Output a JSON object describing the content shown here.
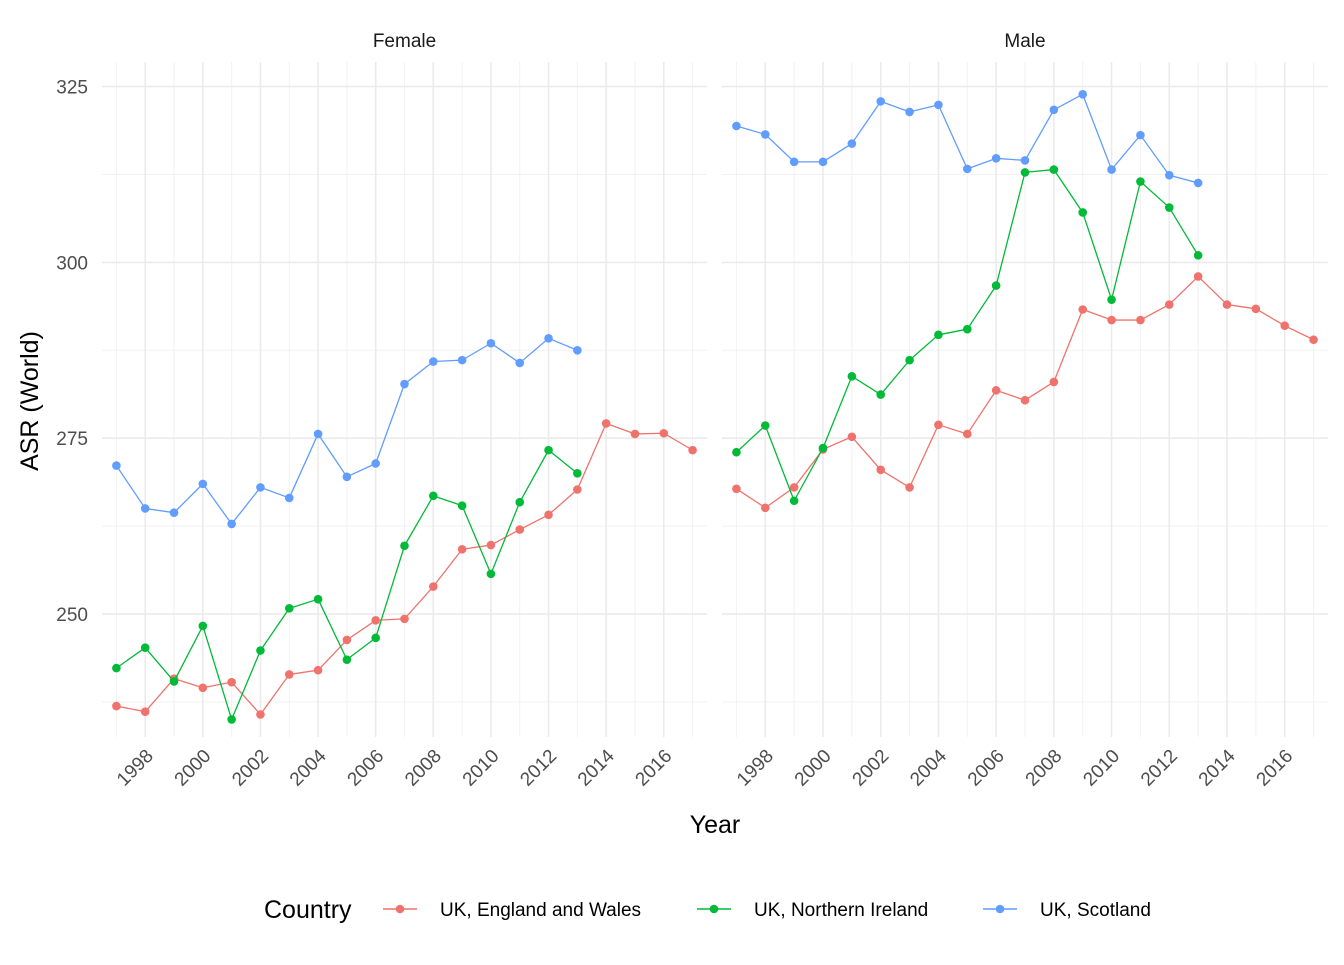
{
  "chart_data": {
    "type": "line",
    "x_label": "Year",
    "y_label": "ASR (World)",
    "facet_order": [
      "Female",
      "Male"
    ],
    "x_range": [
      1996.5,
      2017.5
    ],
    "y_range": [
      232.5,
      328.5
    ],
    "x_ticks": [
      1998,
      2000,
      2002,
      2004,
      2006,
      2008,
      2010,
      2012,
      2014,
      2016
    ],
    "y_ticks": [
      250,
      275,
      300,
      325
    ],
    "grid": true,
    "legend": {
      "title": "Country",
      "position": "bottom",
      "entries": [
        "UK, England and Wales",
        "UK, Northern Ireland",
        "UK, Scotland"
      ]
    },
    "colors": {
      "UK, England and Wales": "#f0726c",
      "UK, Northern Ireland": "#00ba38",
      "UK, Scotland": "#619cff"
    },
    "panels": [
      {
        "facet": "Female",
        "series": [
          {
            "name": "UK, England and Wales",
            "x": [
              1997,
              1998,
              1999,
              2000,
              2001,
              2002,
              2003,
              2004,
              2005,
              2006,
              2007,
              2008,
              2009,
              2010,
              2011,
              2012,
              2013,
              2014,
              2015,
              2016,
              2017
            ],
            "y": [
              236.9,
              236.1,
              240.8,
              239.5,
              240.3,
              235.7,
              241.4,
              242.0,
              246.3,
              249.1,
              249.3,
              253.9,
              259.2,
              259.8,
              262.0,
              264.1,
              267.7,
              277.1,
              275.6,
              275.7,
              273.3
            ]
          },
          {
            "name": "UK, Northern Ireland",
            "x": [
              1997,
              1998,
              1999,
              2000,
              2001,
              2002,
              2003,
              2004,
              2005,
              2006,
              2007,
              2008,
              2009,
              2010,
              2011,
              2012,
              2013
            ],
            "y": [
              242.3,
              245.2,
              240.4,
              248.3,
              235.0,
              244.8,
              250.8,
              252.1,
              243.5,
              246.6,
              259.7,
              266.8,
              265.4,
              255.7,
              265.9,
              273.3,
              270.0
            ]
          },
          {
            "name": "UK, Scotland",
            "x": [
              1997,
              1998,
              1999,
              2000,
              2001,
              2002,
              2003,
              2004,
              2005,
              2006,
              2007,
              2008,
              2009,
              2010,
              2011,
              2012,
              2013
            ],
            "y": [
              271.1,
              265.0,
              264.4,
              268.5,
              262.8,
              268.0,
              266.5,
              275.6,
              269.5,
              271.4,
              282.7,
              285.9,
              286.1,
              288.5,
              285.7,
              289.2,
              287.5
            ]
          }
        ]
      },
      {
        "facet": "Male",
        "series": [
          {
            "name": "UK, England and Wales",
            "x": [
              1997,
              1998,
              1999,
              2000,
              2001,
              2002,
              2003,
              2004,
              2005,
              2006,
              2007,
              2008,
              2009,
              2010,
              2011,
              2012,
              2013,
              2014,
              2015,
              2016,
              2017
            ],
            "y": [
              267.8,
              265.1,
              268.0,
              273.4,
              275.2,
              270.5,
              268.0,
              276.9,
              275.6,
              281.8,
              280.4,
              283.0,
              293.3,
              291.8,
              291.8,
              294.0,
              298.0,
              294.0,
              293.4,
              291.0,
              289.0
            ]
          },
          {
            "name": "UK, Northern Ireland",
            "x": [
              1997,
              1998,
              1999,
              2000,
              2001,
              2002,
              2003,
              2004,
              2005,
              2006,
              2007,
              2008,
              2009,
              2010,
              2011,
              2012,
              2013
            ],
            "y": [
              273.0,
              276.8,
              266.1,
              273.6,
              283.8,
              281.2,
              286.1,
              289.7,
              290.5,
              296.7,
              312.8,
              313.2,
              307.1,
              294.7,
              311.5,
              307.8,
              301.0
            ]
          },
          {
            "name": "UK, Scotland",
            "x": [
              1997,
              1998,
              1999,
              2000,
              2001,
              2002,
              2003,
              2004,
              2005,
              2006,
              2007,
              2008,
              2009,
              2010,
              2011,
              2012,
              2013
            ],
            "y": [
              319.4,
              318.2,
              314.3,
              314.3,
              316.9,
              322.9,
              321.4,
              322.4,
              313.3,
              314.8,
              314.5,
              321.7,
              323.9,
              313.2,
              318.1,
              312.4,
              311.3
            ]
          }
        ]
      }
    ]
  }
}
